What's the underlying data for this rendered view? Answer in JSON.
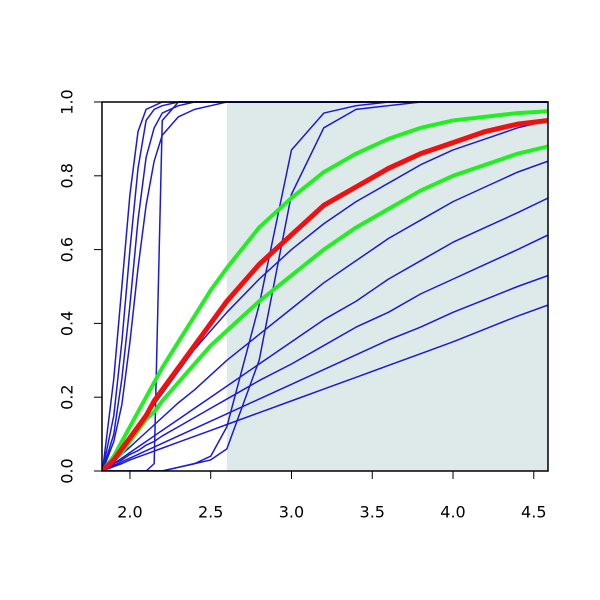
{
  "chart_data": {
    "type": "line",
    "x": [
      1.83,
      1.9,
      1.95,
      2.0,
      2.05,
      2.1,
      2.15,
      2.2,
      2.3,
      2.4,
      2.5,
      2.6,
      2.8,
      3.0,
      3.2,
      3.4,
      3.6,
      3.8,
      4.0,
      4.2,
      4.4,
      4.59
    ],
    "xlim": [
      1.827,
      4.588
    ],
    "ylim": [
      0,
      1
    ],
    "xticks": [
      {
        "value": 2,
        "label": "2.0"
      },
      {
        "value": 2.5,
        "label": "2.5"
      },
      {
        "value": 3,
        "label": "3.0"
      },
      {
        "value": 3.5,
        "label": "3.5"
      },
      {
        "value": 4,
        "label": "4.0"
      },
      {
        "value": 4.5,
        "label": "4.5"
      }
    ],
    "yticks": [
      {
        "value": 0,
        "label": "0.0"
      },
      {
        "value": 0.2,
        "label": "0.2"
      },
      {
        "value": 0.4,
        "label": "0.4"
      },
      {
        "value": 0.6,
        "label": "0.6"
      },
      {
        "value": 0.8,
        "label": "0.8"
      },
      {
        "value": 1,
        "label": "1.0"
      }
    ],
    "shaded_xrange": [
      2.6,
      4.588
    ],
    "shade_color": "#deeaea",
    "series": [
      {
        "color": "#1a1ad6",
        "line_width": 1.5,
        "values": [
          0,
          0.25,
          0.5,
          0.75,
          0.92,
          0.98,
          0.99,
          1,
          1,
          1,
          1,
          1,
          1,
          1,
          1,
          1,
          1,
          1,
          1,
          1,
          1,
          1
        ]
      },
      {
        "color": "#1a1ad6",
        "line_width": 1.5,
        "values": [
          0,
          0.15,
          0.35,
          0.6,
          0.82,
          0.95,
          0.98,
          0.99,
          1,
          1,
          1,
          1,
          1,
          1,
          1,
          1,
          1,
          1,
          1,
          1,
          1,
          1
        ]
      },
      {
        "color": "#1a1ad6",
        "line_width": 1.5,
        "values": [
          0,
          0.1,
          0.25,
          0.45,
          0.68,
          0.85,
          0.93,
          0.97,
          0.99,
          1,
          1,
          1,
          1,
          1,
          1,
          1,
          1,
          1,
          1,
          1,
          1,
          1
        ]
      },
      {
        "color": "#1a1ad6",
        "line_width": 1.5,
        "values": [
          0,
          0,
          0,
          0,
          0,
          0,
          0.02,
          0.95,
          1,
          1,
          1,
          1,
          1,
          1,
          1,
          1,
          1,
          1,
          1,
          1,
          1,
          1
        ]
      },
      {
        "color": "#1a1ad6",
        "line_width": 1.5,
        "values": [
          0,
          0.08,
          0.18,
          0.35,
          0.55,
          0.72,
          0.84,
          0.91,
          0.96,
          0.98,
          0.99,
          1,
          1,
          1,
          1,
          1,
          1,
          1,
          1,
          1,
          1,
          1
        ]
      },
      {
        "color": "#1a1ad6",
        "line_width": 1.5,
        "values": [
          0,
          0,
          0,
          0,
          0,
          0,
          0,
          0,
          0.01,
          0.02,
          0.04,
          0.12,
          0.45,
          0.87,
          0.97,
          0.99,
          1,
          1,
          1,
          1,
          1,
          1
        ]
      },
      {
        "color": "#1a1ad6",
        "line_width": 1.5,
        "values": [
          0,
          0,
          0,
          0,
          0,
          0,
          0,
          0,
          0.01,
          0.02,
          0.03,
          0.06,
          0.3,
          0.75,
          0.93,
          0.98,
          0.99,
          1,
          1,
          1,
          1,
          1
        ]
      },
      {
        "color": "#1a1ad6",
        "line_width": 1.5,
        "values": [
          0,
          0.035,
          0.06,
          0.09,
          0.12,
          0.15,
          0.18,
          0.21,
          0.27,
          0.33,
          0.38,
          0.43,
          0.52,
          0.6,
          0.67,
          0.73,
          0.78,
          0.83,
          0.87,
          0.9,
          0.93,
          0.95
        ]
      },
      {
        "color": "#1a1ad6",
        "line_width": 1.5,
        "values": [
          0,
          0.025,
          0.045,
          0.065,
          0.085,
          0.105,
          0.125,
          0.145,
          0.185,
          0.22,
          0.26,
          0.3,
          0.37,
          0.44,
          0.51,
          0.57,
          0.63,
          0.68,
          0.73,
          0.77,
          0.81,
          0.84
        ]
      },
      {
        "color": "#1a1ad6",
        "line_width": 1.5,
        "values": [
          0,
          0.02,
          0.035,
          0.05,
          0.065,
          0.08,
          0.095,
          0.11,
          0.14,
          0.17,
          0.2,
          0.23,
          0.29,
          0.35,
          0.41,
          0.46,
          0.52,
          0.57,
          0.62,
          0.66,
          0.7,
          0.74
        ]
      },
      {
        "color": "#1a1ad6",
        "line_width": 1.5,
        "values": [
          0,
          0.02,
          0.03,
          0.045,
          0.055,
          0.07,
          0.08,
          0.095,
          0.12,
          0.145,
          0.17,
          0.195,
          0.245,
          0.29,
          0.34,
          0.39,
          0.43,
          0.48,
          0.52,
          0.56,
          0.6,
          0.64
        ]
      },
      {
        "color": "#1a1ad6",
        "line_width": 1.5,
        "values": [
          0,
          0.015,
          0.025,
          0.035,
          0.045,
          0.055,
          0.065,
          0.075,
          0.095,
          0.115,
          0.135,
          0.155,
          0.195,
          0.235,
          0.275,
          0.315,
          0.355,
          0.39,
          0.43,
          0.465,
          0.5,
          0.53
        ]
      },
      {
        "color": "#1a1ad6",
        "line_width": 1.5,
        "values": [
          0,
          0.012,
          0.02,
          0.03,
          0.038,
          0.046,
          0.054,
          0.062,
          0.078,
          0.094,
          0.11,
          0.126,
          0.158,
          0.19,
          0.222,
          0.254,
          0.286,
          0.318,
          0.35,
          0.385,
          0.42,
          0.45
        ]
      },
      {
        "color": "#22ee22",
        "line_width": 4,
        "values": [
          0,
          0.04,
          0.08,
          0.12,
          0.16,
          0.2,
          0.24,
          0.28,
          0.35,
          0.42,
          0.49,
          0.55,
          0.66,
          0.74,
          0.81,
          0.86,
          0.9,
          0.93,
          0.95,
          0.96,
          0.97,
          0.975
        ]
      },
      {
        "color": "#22ee22",
        "line_width": 4,
        "values": [
          0,
          0.03,
          0.05,
          0.08,
          0.11,
          0.14,
          0.16,
          0.19,
          0.24,
          0.29,
          0.34,
          0.38,
          0.46,
          0.53,
          0.6,
          0.66,
          0.71,
          0.76,
          0.8,
          0.83,
          0.86,
          0.88
        ]
      },
      {
        "color": "#ee1111",
        "line_width": 5,
        "values": [
          0,
          0.03,
          0.06,
          0.09,
          0.12,
          0.15,
          0.19,
          0.22,
          0.28,
          0.34,
          0.4,
          0.46,
          0.56,
          0.64,
          0.72,
          0.77,
          0.82,
          0.86,
          0.89,
          0.92,
          0.94,
          0.95
        ]
      }
    ]
  }
}
